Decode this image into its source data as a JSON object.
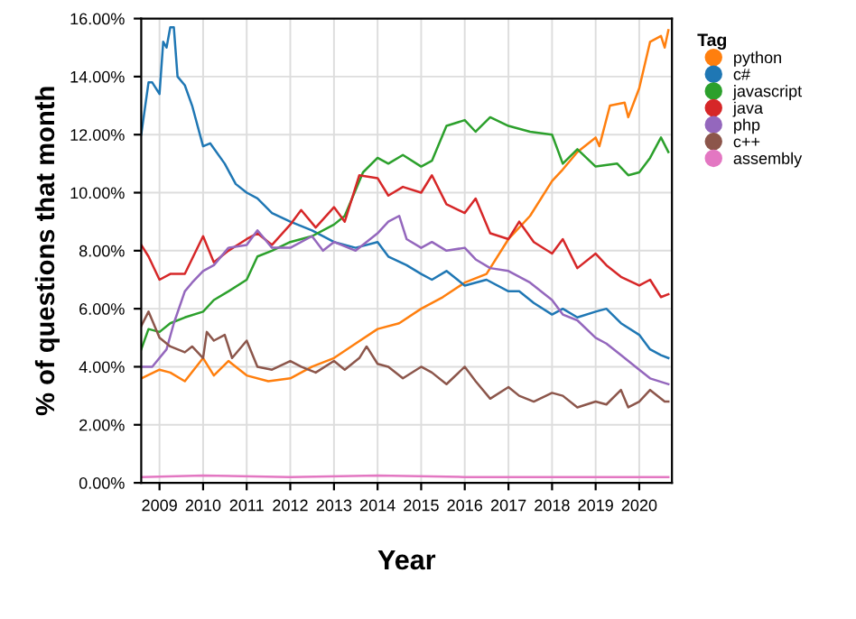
{
  "chart_data": {
    "type": "line",
    "xlabel": "Year",
    "ylabel": "% of questions that month",
    "legend_title": "Tag",
    "legend": "right",
    "grid": true,
    "marker": "none",
    "line_style": "solid",
    "xlim": [
      "2008-08",
      "2020-10"
    ],
    "xticks": [
      "2009",
      "2010",
      "2011",
      "2012",
      "2013",
      "2014",
      "2015",
      "2016",
      "2017",
      "2018",
      "2019",
      "2020"
    ],
    "ylim": [
      0,
      16
    ],
    "yticks": [
      {
        "value": 0,
        "label": "0.00%"
      },
      {
        "value": 2,
        "label": "2.00%"
      },
      {
        "value": 4,
        "label": "4.00%"
      },
      {
        "value": 6,
        "label": "6.00%"
      },
      {
        "value": 8,
        "label": "8.00%"
      },
      {
        "value": 10,
        "label": "10.00%"
      },
      {
        "value": 12,
        "label": "12.00%"
      },
      {
        "value": 14,
        "label": "14.00%"
      },
      {
        "value": 16,
        "label": "16.00%"
      }
    ],
    "series": [
      {
        "name": "python",
        "color": "#ff7f0e",
        "x": [
          "2008-08",
          "2009-01",
          "2009-04",
          "2009-08",
          "2010-01",
          "2010-04",
          "2010-08",
          "2011-01",
          "2011-07",
          "2012-01",
          "2012-07",
          "2013-01",
          "2013-07",
          "2014-01",
          "2014-07",
          "2015-01",
          "2015-07",
          "2016-01",
          "2016-07",
          "2017-01",
          "2017-07",
          "2018-01",
          "2018-04",
          "2018-08",
          "2019-01",
          "2019-02",
          "2019-05",
          "2019-09",
          "2019-10",
          "2020-01",
          "2020-04",
          "2020-07",
          "2020-08",
          "2020-09"
        ],
        "values": [
          3.6,
          3.9,
          3.8,
          3.5,
          4.3,
          3.7,
          4.2,
          3.7,
          3.5,
          3.6,
          4.0,
          4.3,
          4.8,
          5.3,
          5.5,
          6.0,
          6.4,
          6.9,
          7.2,
          8.4,
          9.2,
          10.4,
          10.8,
          11.4,
          11.9,
          11.6,
          13.0,
          13.1,
          12.6,
          13.6,
          15.2,
          15.4,
          15.0,
          15.6
        ]
      },
      {
        "name": "c#",
        "color": "#1f77b4",
        "x": [
          "2008-08",
          "2008-10",
          "2008-11",
          "2009-01",
          "2009-02",
          "2009-03",
          "2009-04",
          "2009-05",
          "2009-06",
          "2009-08",
          "2009-10",
          "2010-01",
          "2010-03",
          "2010-07",
          "2010-10",
          "2011-01",
          "2011-04",
          "2011-08",
          "2012-01",
          "2012-07",
          "2013-01",
          "2013-07",
          "2014-01",
          "2014-04",
          "2014-09",
          "2015-01",
          "2015-04",
          "2015-08",
          "2016-01",
          "2016-07",
          "2017-01",
          "2017-04",
          "2017-08",
          "2018-01",
          "2018-04",
          "2018-08",
          "2019-01",
          "2019-04",
          "2019-08",
          "2020-01",
          "2020-04",
          "2020-07",
          "2020-09"
        ],
        "values": [
          12.0,
          13.8,
          13.8,
          13.4,
          15.2,
          15.0,
          15.7,
          15.7,
          14.0,
          13.7,
          13.0,
          11.6,
          11.7,
          11.0,
          10.3,
          10.0,
          9.8,
          9.3,
          9.0,
          8.7,
          8.3,
          8.1,
          8.3,
          7.8,
          7.5,
          7.2,
          7.0,
          7.3,
          6.8,
          7.0,
          6.6,
          6.6,
          6.2,
          5.8,
          6.0,
          5.7,
          5.9,
          6.0,
          5.5,
          5.1,
          4.6,
          4.4,
          4.3
        ]
      },
      {
        "name": "javascript",
        "color": "#2ca02c",
        "x": [
          "2008-08",
          "2008-10",
          "2009-01",
          "2009-04",
          "2009-08",
          "2010-01",
          "2010-04",
          "2010-08",
          "2011-01",
          "2011-04",
          "2011-08",
          "2012-01",
          "2012-07",
          "2013-01",
          "2013-04",
          "2013-09",
          "2014-01",
          "2014-04",
          "2014-08",
          "2015-01",
          "2015-04",
          "2015-08",
          "2016-01",
          "2016-04",
          "2016-08",
          "2017-01",
          "2017-07",
          "2018-01",
          "2018-04",
          "2018-08",
          "2019-01",
          "2019-07",
          "2019-10",
          "2020-01",
          "2020-04",
          "2020-07",
          "2020-09"
        ],
        "values": [
          4.6,
          5.3,
          5.2,
          5.5,
          5.7,
          5.9,
          6.3,
          6.6,
          7.0,
          7.8,
          8.0,
          8.3,
          8.5,
          8.9,
          9.2,
          10.7,
          11.2,
          11.0,
          11.3,
          10.9,
          11.1,
          12.3,
          12.5,
          12.1,
          12.6,
          12.3,
          12.1,
          12.0,
          11.0,
          11.5,
          10.9,
          11.0,
          10.6,
          10.7,
          11.2,
          11.9,
          11.4
        ]
      },
      {
        "name": "java",
        "color": "#d62728",
        "x": [
          "2008-08",
          "2008-10",
          "2009-01",
          "2009-04",
          "2009-08",
          "2010-01",
          "2010-04",
          "2010-08",
          "2011-01",
          "2011-04",
          "2011-08",
          "2012-01",
          "2012-04",
          "2012-08",
          "2013-01",
          "2013-04",
          "2013-08",
          "2014-01",
          "2014-04",
          "2014-08",
          "2015-01",
          "2015-04",
          "2015-08",
          "2016-01",
          "2016-04",
          "2016-08",
          "2017-01",
          "2017-04",
          "2017-08",
          "2018-01",
          "2018-04",
          "2018-08",
          "2019-01",
          "2019-04",
          "2019-08",
          "2020-01",
          "2020-04",
          "2020-07",
          "2020-09"
        ],
        "values": [
          8.2,
          7.8,
          7.0,
          7.2,
          7.2,
          8.5,
          7.6,
          8.0,
          8.4,
          8.6,
          8.2,
          8.9,
          9.4,
          8.8,
          9.5,
          9.0,
          10.6,
          10.5,
          9.9,
          10.2,
          10.0,
          10.6,
          9.6,
          9.3,
          9.8,
          8.6,
          8.4,
          9.0,
          8.3,
          7.9,
          8.4,
          7.4,
          7.9,
          7.5,
          7.1,
          6.8,
          7.0,
          6.4,
          6.5
        ]
      },
      {
        "name": "php",
        "color": "#9467bd",
        "x": [
          "2008-08",
          "2008-11",
          "2009-03",
          "2009-05",
          "2009-08",
          "2009-10",
          "2010-01",
          "2010-04",
          "2010-08",
          "2011-01",
          "2011-04",
          "2011-08",
          "2012-01",
          "2012-07",
          "2012-10",
          "2013-01",
          "2013-07",
          "2014-01",
          "2014-04",
          "2014-07",
          "2014-09",
          "2015-01",
          "2015-04",
          "2015-08",
          "2016-01",
          "2016-04",
          "2016-08",
          "2017-01",
          "2017-07",
          "2018-01",
          "2018-04",
          "2018-08",
          "2019-01",
          "2019-04",
          "2019-08",
          "2020-01",
          "2020-04",
          "2020-09"
        ],
        "values": [
          4.0,
          4.0,
          4.6,
          5.5,
          6.6,
          6.9,
          7.3,
          7.5,
          8.1,
          8.2,
          8.7,
          8.1,
          8.1,
          8.5,
          8.0,
          8.3,
          8.0,
          8.6,
          9.0,
          9.2,
          8.4,
          8.1,
          8.3,
          8.0,
          8.1,
          7.7,
          7.4,
          7.3,
          6.9,
          6.3,
          5.8,
          5.6,
          5.0,
          4.8,
          4.4,
          3.9,
          3.6,
          3.4
        ]
      },
      {
        "name": "c++",
        "color": "#8c564b",
        "x": [
          "2008-08",
          "2008-10",
          "2009-01",
          "2009-04",
          "2009-08",
          "2009-10",
          "2010-01",
          "2010-02",
          "2010-04",
          "2010-07",
          "2010-09",
          "2011-01",
          "2011-04",
          "2011-08",
          "2012-01",
          "2012-04",
          "2012-08",
          "2013-01",
          "2013-04",
          "2013-08",
          "2013-10",
          "2014-01",
          "2014-04",
          "2014-08",
          "2015-01",
          "2015-04",
          "2015-08",
          "2016-01",
          "2016-04",
          "2016-08",
          "2017-01",
          "2017-04",
          "2017-08",
          "2018-01",
          "2018-04",
          "2018-08",
          "2019-01",
          "2019-04",
          "2019-08",
          "2019-10",
          "2020-01",
          "2020-04",
          "2020-08",
          "2020-09"
        ],
        "values": [
          5.4,
          5.9,
          5.0,
          4.7,
          4.5,
          4.7,
          4.3,
          5.2,
          4.9,
          5.1,
          4.3,
          4.9,
          4.0,
          3.9,
          4.2,
          4.0,
          3.8,
          4.2,
          3.9,
          4.3,
          4.7,
          4.1,
          4.0,
          3.6,
          4.0,
          3.8,
          3.4,
          4.0,
          3.5,
          2.9,
          3.3,
          3.0,
          2.8,
          3.1,
          3.0,
          2.6,
          2.8,
          2.7,
          3.2,
          2.6,
          2.8,
          3.2,
          2.8,
          2.8
        ]
      },
      {
        "name": "assembly",
        "color": "#e377c2",
        "x": [
          "2008-08",
          "2010-01",
          "2012-01",
          "2014-01",
          "2016-01",
          "2018-01",
          "2020-01",
          "2020-09"
        ],
        "values": [
          0.2,
          0.25,
          0.2,
          0.25,
          0.2,
          0.2,
          0.2,
          0.2
        ]
      }
    ]
  }
}
